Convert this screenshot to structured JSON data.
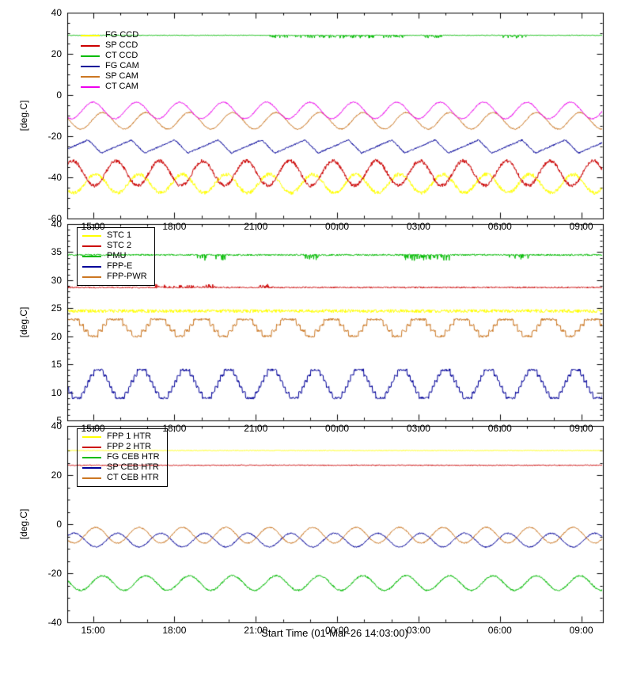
{
  "figure": {
    "x_title": "Start Time (01-Mar-26 14:03:00)",
    "background_color": "#ffffff",
    "axis_color": "#000000"
  },
  "x_axis": {
    "start_hour": 14.05,
    "end_hour": 33.8,
    "minor_step_hours": 1,
    "major_ticks": [
      {
        "hour": 15,
        "label": "15:00"
      },
      {
        "hour": 18,
        "label": "18:00"
      },
      {
        "hour": 21,
        "label": "21:00"
      },
      {
        "hour": 24,
        "label": "00:00"
      },
      {
        "hour": 27,
        "label": "03:00"
      },
      {
        "hour": 30,
        "label": "06:00"
      },
      {
        "hour": 33,
        "label": "09:00"
      }
    ]
  },
  "chart_data": [
    {
      "type": "line",
      "ylabel": "[deg.C]",
      "ylim": [
        -60,
        40
      ],
      "yticks": [
        40,
        20,
        0,
        -20,
        -40,
        -60
      ],
      "ytick_minor_step": 5,
      "grid": false,
      "legend_position": "upper-left",
      "legend_box": false,
      "series": [
        {
          "name": "FG CCD",
          "color": "#ffff00",
          "pattern": "sine",
          "mean": -43,
          "amplitude": 4.5,
          "period_hours": 1.6,
          "phase_hours": 0.3,
          "noise": 0.9
        },
        {
          "name": "SP CCD",
          "color": "#cc0000",
          "pattern": "sine",
          "mean": -38,
          "amplitude": 6,
          "period_hours": 1.6,
          "phase_hours": 1.05,
          "noise": 0.9
        },
        {
          "name": "CT CCD",
          "color": "#00bb00",
          "pattern": "flat",
          "mean": 29,
          "noise": 0.18,
          "bursts": [
            {
              "from": 21.5,
              "to": 26.5,
              "amp": -1.3,
              "prob": 0.3
            },
            {
              "from": 27.2,
              "to": 27.9,
              "amp": -1.3,
              "prob": 0.3
            },
            {
              "from": 30.1,
              "to": 31.0,
              "amp": -1.3,
              "prob": 0.3
            }
          ]
        },
        {
          "name": "FG CAM",
          "color": "#000099",
          "pattern": "sawtooth",
          "mean": -25,
          "amplitude": 3.2,
          "period_hours": 1.6,
          "phase_hours": 0.9,
          "noise": 0.35
        },
        {
          "name": "SP CAM",
          "color": "#cc7722",
          "pattern": "sine",
          "mean": -12.5,
          "amplitude": 4,
          "period_hours": 1.6,
          "phase_hours": 0.55,
          "noise": 0.3
        },
        {
          "name": "CT CAM",
          "color": "#ee00ee",
          "pattern": "sine",
          "mean": -7.5,
          "amplitude": 4,
          "period_hours": 1.6,
          "phase_hours": 0.2,
          "noise": 0.3
        }
      ]
    },
    {
      "type": "line",
      "ylabel": "[deg.C]",
      "ylim": [
        5,
        40
      ],
      "yticks": [
        40,
        35,
        30,
        25,
        20,
        15,
        10,
        5
      ],
      "ytick_minor_step": 1,
      "grid": false,
      "legend_position": "upper-left",
      "legend_box": true,
      "series": [
        {
          "name": "STC 1",
          "color": "#ffff00",
          "pattern": "flat",
          "mean": 24.5,
          "noise": 0.3
        },
        {
          "name": "STC 2",
          "color": "#cc0000",
          "pattern": "flat",
          "mean": 28.7,
          "noise": 0.12,
          "bursts": [
            {
              "from": 17.3,
              "to": 19.6,
              "amp": 0.55,
              "prob": 0.25
            },
            {
              "from": 21.1,
              "to": 21.7,
              "amp": 0.55,
              "prob": 0.3
            }
          ]
        },
        {
          "name": "PMU",
          "color": "#00bb00",
          "pattern": "flat",
          "mean": 34.5,
          "noise": 0.15,
          "bursts": [
            {
              "from": 18.8,
              "to": 19.9,
              "amp": -1.0,
              "prob": 0.3
            },
            {
              "from": 22.8,
              "to": 23.4,
              "amp": -0.9,
              "prob": 0.3
            },
            {
              "from": 26.3,
              "to": 28.2,
              "amp": -1.0,
              "prob": 0.35
            },
            {
              "from": 30.3,
              "to": 31.1,
              "amp": -0.9,
              "prob": 0.3
            }
          ]
        },
        {
          "name": "FPP-E",
          "color": "#000099",
          "pattern": "steps",
          "mean": 11.5,
          "amplitude": 2.6,
          "period_hours": 1.6,
          "phase_hours": 0.4,
          "noise": 0.2
        },
        {
          "name": "FPP-PWR",
          "color": "#cc7722",
          "pattern": "steps",
          "mean": 21.8,
          "amplitude": 1.7,
          "period_hours": 1.6,
          "phase_hours": 1.0,
          "noise": 0.2
        }
      ]
    },
    {
      "type": "line",
      "ylabel": "[deg.C]",
      "ylim": [
        -40,
        40
      ],
      "yticks": [
        40,
        20,
        0,
        -20,
        -40
      ],
      "ytick_minor_step": 5,
      "grid": false,
      "legend_position": "upper-left",
      "legend_box": true,
      "series": [
        {
          "name": "FPP 1 HTR",
          "color": "#ffff00",
          "pattern": "flat",
          "mean": 30,
          "noise": 0.15
        },
        {
          "name": "FPP 2 HTR",
          "color": "#cc0000",
          "pattern": "flat",
          "mean": 24,
          "noise": 0.2
        },
        {
          "name": "FG CEB HTR",
          "color": "#00bb00",
          "pattern": "sine",
          "mean": -24,
          "amplitude": 3,
          "period_hours": 1.6,
          "phase_hours": 0.55,
          "noise": 0.35
        },
        {
          "name": "SP CEB HTR",
          "color": "#000099",
          "pattern": "sine",
          "mean": -6.5,
          "amplitude": 2.8,
          "period_hours": 1.6,
          "phase_hours": 1.1,
          "noise": 0.25
        },
        {
          "name": "CT CEB HTR",
          "color": "#cc7722",
          "pattern": "sine",
          "mean": -4.5,
          "amplitude": 3.2,
          "period_hours": 1.6,
          "phase_hours": 0.3,
          "noise": 0.25
        }
      ]
    }
  ]
}
